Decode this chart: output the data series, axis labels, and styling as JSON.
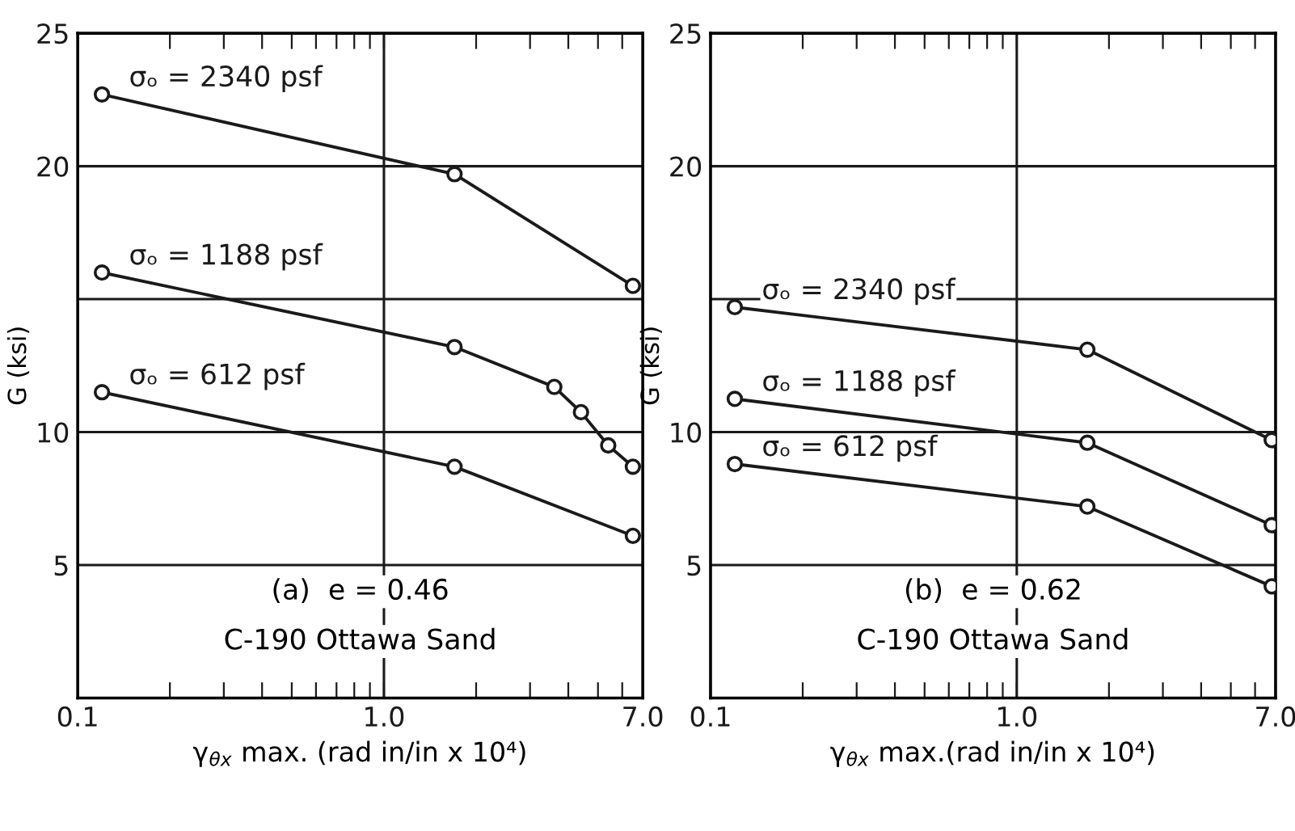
{
  "chart_data": [
    {
      "type": "line",
      "xlabel": "γ$_{θx}$ max. (rad in/in x 10⁴)",
      "ylabel": "G (ksi)",
      "log": "x",
      "marker": "circle",
      "grid": "y",
      "tick_labels": true,
      "xlim": [
        0.1,
        7.0
      ],
      "xticks": [
        0.1,
        {
          "value": 0.2,
          "label": null
        },
        {
          "value": 0.3,
          "label": null
        },
        {
          "value": 0.4,
          "label": null
        },
        {
          "value": 0.5,
          "label": null
        },
        {
          "value": 0.6,
          "label": null
        },
        {
          "value": 0.7,
          "label": null
        },
        {
          "value": 0.8,
          "label": null
        },
        {
          "value": 0.9,
          "label": null
        },
        {
          "value": 1.0,
          "label": "1.0"
        },
        {
          "value": 2,
          "label": null
        },
        {
          "value": 3,
          "label": null
        },
        {
          "value": 4,
          "label": null
        },
        {
          "value": 5,
          "label": null
        },
        {
          "value": 6,
          "label": null
        },
        {
          "value": 7.0,
          "label": "7.0"
        }
      ],
      "ylim": [
        0,
        25
      ],
      "yticks": [
        5,
        10,
        {
          "value": 15,
          "label": null
        },
        20,
        25
      ],
      "ref_lines": [
        {
          "axis": "x",
          "value": 1.0
        }
      ],
      "series": [
        {
          "name": "σₒ = 2340 psf",
          "color": "#1a1a1a",
          "x": [
            0.12,
            1.7,
            6.5
          ],
          "values": [
            22.7,
            19.7,
            15.5
          ]
        },
        {
          "name": "σₒ = 1188 psf",
          "color": "#1a1a1a",
          "x": [
            0.12,
            1.7,
            3.6,
            4.4,
            5.4,
            6.5
          ],
          "values": [
            16.0,
            13.2,
            11.7,
            10.75,
            9.5,
            8.7
          ]
        },
        {
          "name": "σₒ = 612 psf",
          "color": "#1a1a1a",
          "x": [
            0.12,
            1.7,
            6.5
          ],
          "values": [
            11.5,
            8.7,
            6.1
          ]
        }
      ],
      "annotations": [
        "(a)  e = 0.46",
        "C-190 Ottawa Sand"
      ]
    },
    {
      "type": "line",
      "xlabel": "γ$_{θx}$ max.(rad in/in x 10⁴)",
      "ylabel": "G (ksi)",
      "log": "x",
      "marker": "circle",
      "grid": "y",
      "xlim": [
        0.1,
        7.0
      ],
      "xticks": [
        0.1,
        {
          "value": 0.2,
          "label": null
        },
        {
          "value": 0.3,
          "label": null
        },
        {
          "value": 0.4,
          "label": null
        },
        {
          "value": 0.5,
          "label": null
        },
        {
          "value": 0.6,
          "label": null
        },
        {
          "value": 0.7,
          "label": null
        },
        {
          "value": 0.8,
          "label": null
        },
        {
          "value": 0.9,
          "label": null
        },
        {
          "value": 1.0,
          "label": "1.0"
        },
        {
          "value": 2,
          "label": null
        },
        {
          "value": 3,
          "label": null
        },
        {
          "value": 4,
          "label": null
        },
        {
          "value": 5,
          "label": null
        },
        {
          "value": 6,
          "label": null
        },
        {
          "value": 7.0,
          "label": "7.0"
        }
      ],
      "ylim": [
        0,
        25
      ],
      "yticks": [
        5,
        10,
        {
          "value": 15,
          "label": null
        },
        20,
        25
      ],
      "ref_lines": [
        {
          "axis": "x",
          "value": 1.0
        }
      ],
      "series": [
        {
          "name": "σₒ = 2340 psf",
          "color": "#1a1a1a",
          "x": [
            0.12,
            1.7,
            6.8
          ],
          "values": [
            14.7,
            13.1,
            9.7
          ]
        },
        {
          "name": "σₒ = 1188 psf",
          "color": "#1a1a1a",
          "x": [
            0.12,
            1.7,
            6.8
          ],
          "values": [
            11.25,
            9.6,
            6.5
          ]
        },
        {
          "name": "σₒ = 612 psf",
          "color": "#1a1a1a",
          "x": [
            0.12,
            1.7,
            6.8
          ],
          "values": [
            8.8,
            7.2,
            4.2
          ]
        }
      ],
      "annotations": [
        "(b)  e = 0.62",
        "C-190 Ottawa Sand"
      ]
    }
  ]
}
